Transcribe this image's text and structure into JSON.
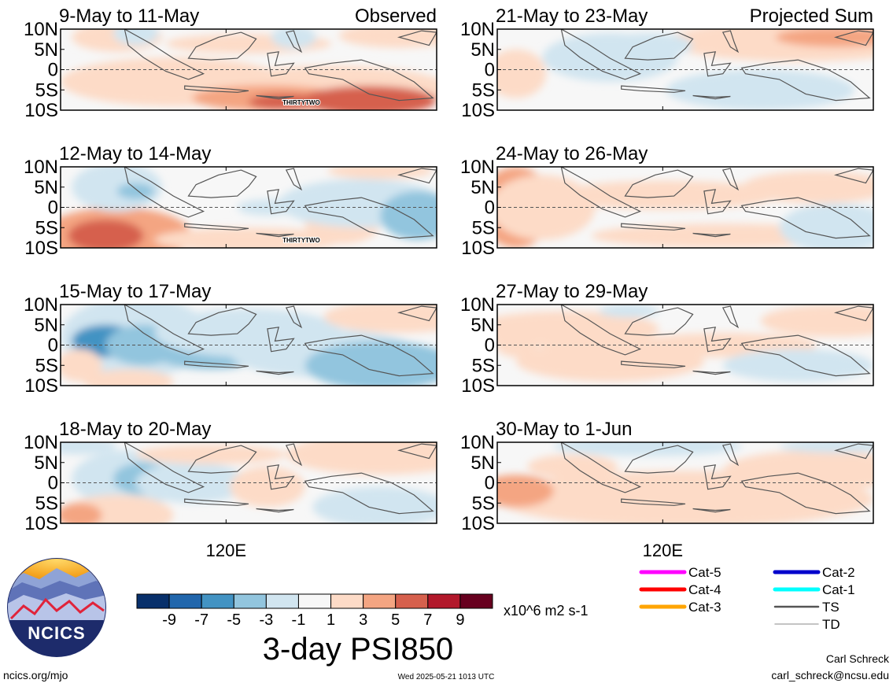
{
  "chart_data": {
    "type": "heatmap",
    "quantity": "3-day PSI850",
    "units": "x10^6 m2 s-1",
    "columns": [
      {
        "label": "Observed",
        "panels": [
          {
            "title": "9-May to 11-May",
            "storm_label": "THIRTYTWO"
          },
          {
            "title": "12-May to 14-May",
            "storm_label": "THIRTYTWO"
          },
          {
            "title": "15-May to 17-May",
            "storm_label": ""
          },
          {
            "title": "18-May to 20-May",
            "storm_label": ""
          }
        ]
      },
      {
        "label": "Projected Sum",
        "panels": [
          {
            "title": "21-May to 23-May",
            "storm_label": ""
          },
          {
            "title": "24-May to 26-May",
            "storm_label": ""
          },
          {
            "title": "27-May to 29-May",
            "storm_label": ""
          },
          {
            "title": "30-May to 1-Jun",
            "storm_label": ""
          }
        ]
      }
    ],
    "y_ticks": [
      "10N",
      "5N",
      "0",
      "5S",
      "10S"
    ],
    "x_tick": "120E",
    "colorbar": {
      "ticks": [
        "-9",
        "-7",
        "-5",
        "-3",
        "-1",
        "1",
        "3",
        "5",
        "7",
        "9"
      ],
      "colors": [
        "#08306b",
        "#2166ac",
        "#4393c3",
        "#92c5de",
        "#d1e5f0",
        "#f7f7f7",
        "#fddbc7",
        "#f4a582",
        "#d6604d",
        "#b2182b",
        "#67001f"
      ]
    },
    "legend": [
      {
        "label": "Cat-5",
        "color": "#ff00ff"
      },
      {
        "label": "Cat-4",
        "color": "#ff0000"
      },
      {
        "label": "Cat-3",
        "color": "#ffa500"
      },
      {
        "label": "Cat-2",
        "color": "#0000cc"
      },
      {
        "label": "Cat-1",
        "color": "#00ffff"
      },
      {
        "label": "TS",
        "color": "#555555"
      },
      {
        "label": "TD",
        "color": "#b0b0b0"
      }
    ]
  },
  "logo": {
    "text": "NCICS"
  },
  "footer": {
    "left": "ncics.org/mjo",
    "center": "Wed 2025-05-21 1013 UTC",
    "author": "Carl Schreck",
    "email": "carl_schreck@ncsu.edu"
  }
}
